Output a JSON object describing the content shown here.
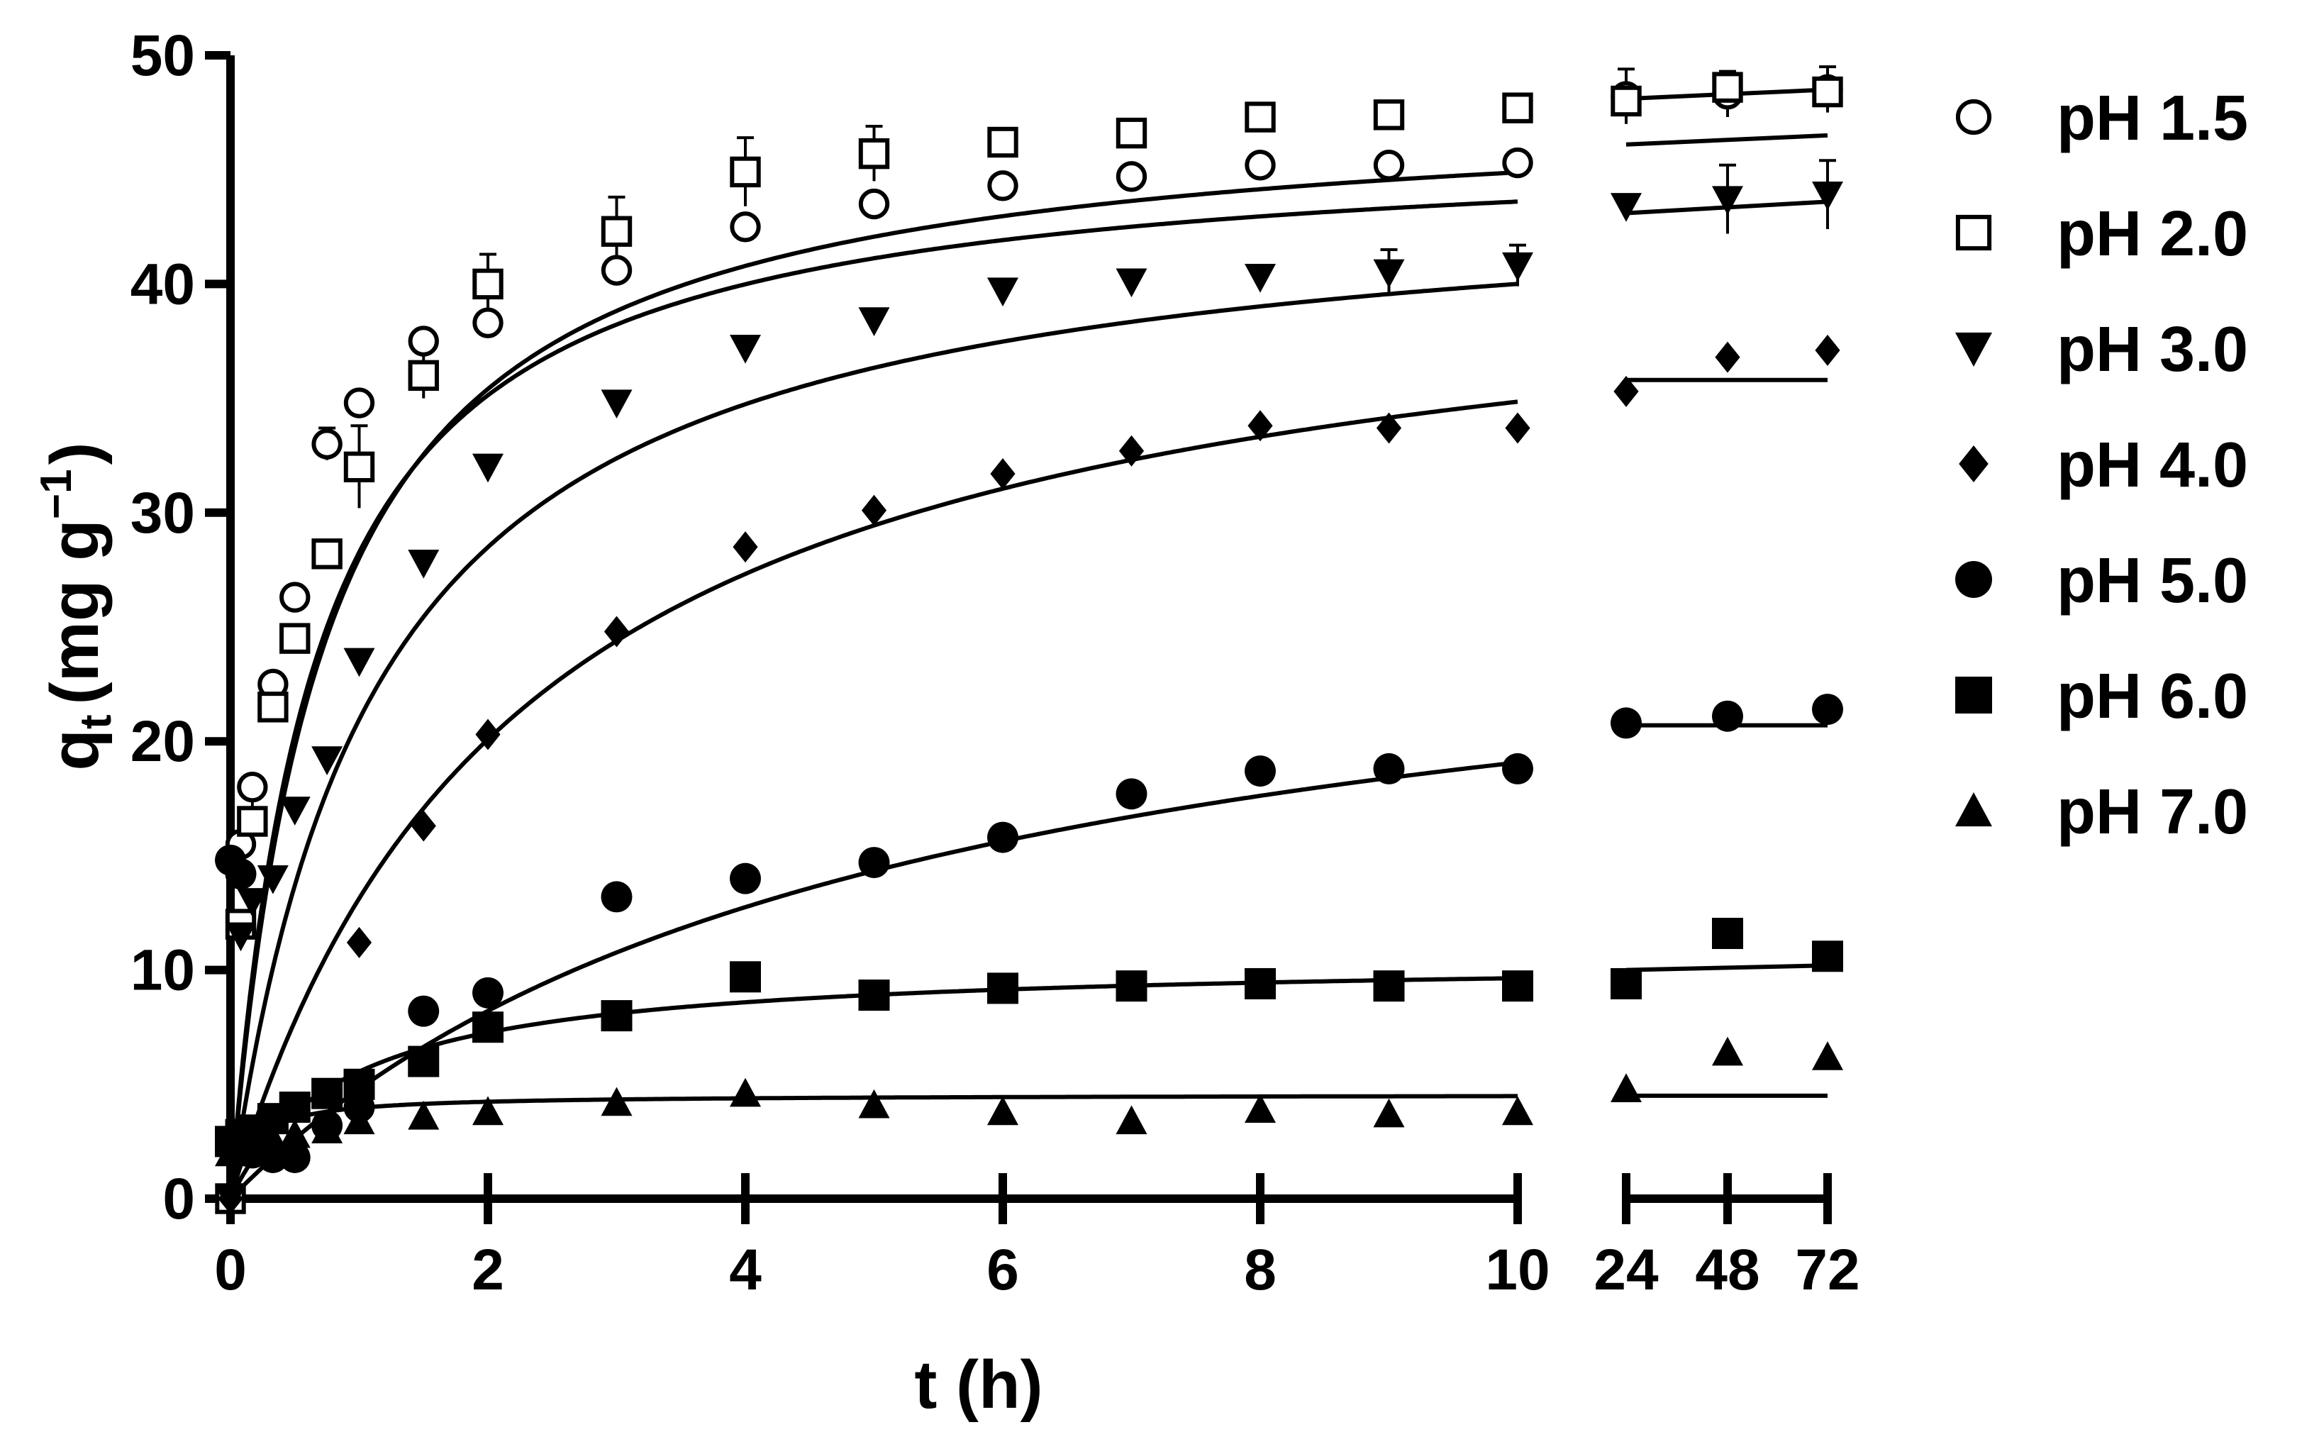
{
  "chart_data": {
    "type": "scatter",
    "xlabel": "t (h)",
    "ylabel": "q",
    "ylabel_sub": "t",
    "ylabel_unit": "(mg g",
    "ylabel_sup": "−1",
    "ylabel_close": ")",
    "ylim": [
      0,
      50
    ],
    "xlim_main": [
      0,
      10
    ],
    "x_ticks_main": [
      "0",
      "2",
      "4",
      "6",
      "8",
      "10"
    ],
    "x_ticks_break": [
      "24",
      "48",
      "72"
    ],
    "y_ticks": [
      "0",
      "10",
      "20",
      "30",
      "40",
      "50"
    ],
    "series": [
      {
        "name": "pH 1.5",
        "marker": "circle-open",
        "points": [
          [
            0,
            0
          ],
          [
            0.08,
            15.5
          ],
          [
            0.17,
            18
          ],
          [
            0.33,
            22.5
          ],
          [
            0.5,
            26.3
          ],
          [
            0.75,
            33
          ],
          [
            1,
            34.8
          ],
          [
            1.5,
            37.5
          ],
          [
            2,
            38.3
          ],
          [
            3,
            40.6
          ],
          [
            4,
            42.5
          ],
          [
            5,
            43.5
          ],
          [
            6,
            44.3
          ],
          [
            7,
            44.7
          ],
          [
            8,
            45.2
          ],
          [
            9,
            45.2
          ],
          [
            10,
            45.3
          ],
          [
            24,
            48.2
          ],
          [
            48,
            48.3
          ],
          [
            72,
            48.5
          ]
        ],
        "fit": {
          "model": "pso",
          "qe": 46.4,
          "k": 0.0336
        }
      },
      {
        "name": "pH 2.0",
        "marker": "square-open",
        "points": [
          [
            0,
            0
          ],
          [
            0.08,
            12
          ],
          [
            0.17,
            16.5
          ],
          [
            0.33,
            21.5
          ],
          [
            0.5,
            24.5
          ],
          [
            0.75,
            28.2
          ],
          [
            1,
            32
          ],
          [
            1.5,
            36
          ],
          [
            2,
            40
          ],
          [
            3,
            42.3
          ],
          [
            4,
            44.9
          ],
          [
            5,
            45.7
          ],
          [
            6,
            46.2
          ],
          [
            7,
            46.6
          ],
          [
            8,
            47.3
          ],
          [
            9,
            47.4
          ],
          [
            10,
            47.7
          ],
          [
            24,
            48
          ],
          [
            48,
            48.6
          ],
          [
            72,
            48.4
          ]
        ],
        "fit": {
          "model": "pso",
          "qe": 48.1,
          "k": 0.029
        }
      },
      {
        "name": "pH 3.0",
        "marker": "triangle-down",
        "points": [
          [
            0,
            0
          ],
          [
            0.08,
            11.5
          ],
          [
            0.17,
            13
          ],
          [
            0.33,
            14
          ],
          [
            0.5,
            17
          ],
          [
            0.75,
            19.2
          ],
          [
            1,
            23.5
          ],
          [
            1.5,
            27.8
          ],
          [
            2,
            32
          ],
          [
            3,
            34.8
          ],
          [
            4,
            37.2
          ],
          [
            5,
            38.4
          ],
          [
            6,
            39.7
          ],
          [
            7,
            40.1
          ],
          [
            8,
            40.3
          ],
          [
            9,
            40.5
          ],
          [
            10,
            40.8
          ],
          [
            24,
            43.4
          ],
          [
            48,
            43.7
          ],
          [
            72,
            43.9
          ]
        ],
        "fit": {
          "model": "pso",
          "qe": 44.5,
          "k": 0.02
        }
      },
      {
        "name": "pH 4.0",
        "marker": "diamond",
        "points": [
          [
            0,
            0
          ],
          [
            1,
            11.2
          ],
          [
            1.5,
            16.3
          ],
          [
            2,
            20.3
          ],
          [
            3,
            24.8
          ],
          [
            4,
            28.5
          ],
          [
            5,
            30.1
          ],
          [
            6,
            31.7
          ],
          [
            7,
            32.7
          ],
          [
            8,
            33.8
          ],
          [
            9,
            33.7
          ],
          [
            10,
            33.7
          ],
          [
            24,
            35.3
          ],
          [
            48,
            36.8
          ],
          [
            72,
            37.1
          ]
        ],
        "fit": {
          "model": "pso",
          "qe": 42.7,
          "k": 0.0104
        }
      },
      {
        "name": "pH 5.0",
        "marker": "circle-filled",
        "points": [
          [
            0,
            14.8
          ],
          [
            0.08,
            14.2
          ],
          [
            0.17,
            2
          ],
          [
            0.33,
            1.8
          ],
          [
            0.5,
            1.8
          ],
          [
            0.75,
            3.2
          ],
          [
            1,
            4
          ],
          [
            1.5,
            8.2
          ],
          [
            2,
            9
          ],
          [
            3,
            13.2
          ],
          [
            4,
            14
          ],
          [
            5,
            14.7
          ],
          [
            6,
            15.8
          ],
          [
            7,
            17.7
          ],
          [
            8,
            18.7
          ],
          [
            9,
            18.8
          ],
          [
            10,
            18.8
          ],
          [
            24,
            20.8
          ],
          [
            48,
            21.1
          ],
          [
            72,
            21.4
          ]
        ],
        "fit": {
          "model": "pso",
          "qe": 28.5,
          "k": 0.0071
        }
      },
      {
        "name": "pH 6.0",
        "marker": "square-filled",
        "points": [
          [
            0,
            2.5
          ],
          [
            0.08,
            2.8
          ],
          [
            0.17,
            3
          ],
          [
            0.33,
            3.5
          ],
          [
            0.5,
            4
          ],
          [
            0.75,
            4.6
          ],
          [
            1,
            5
          ],
          [
            1.5,
            6
          ],
          [
            2,
            7.5
          ],
          [
            3,
            8
          ],
          [
            4,
            9.7
          ],
          [
            5,
            8.9
          ],
          [
            6,
            9.2
          ],
          [
            7,
            9.3
          ],
          [
            8,
            9.4
          ],
          [
            9,
            9.3
          ],
          [
            10,
            9.3
          ],
          [
            24,
            9.4
          ],
          [
            48,
            11.6
          ],
          [
            72,
            10.6
          ]
        ],
        "fit": {
          "model": "pso",
          "qe": 10.5,
          "k": 0.107
        }
      },
      {
        "name": "pH 7.0",
        "marker": "triangle-up",
        "points": [
          [
            0,
            2
          ],
          [
            0.08,
            2.2
          ],
          [
            0.17,
            2.4
          ],
          [
            0.33,
            2.6
          ],
          [
            0.5,
            2.8
          ],
          [
            0.75,
            3
          ],
          [
            1,
            3.4
          ],
          [
            1.5,
            3.6
          ],
          [
            2,
            3.8
          ],
          [
            3,
            4.2
          ],
          [
            4,
            4.6
          ],
          [
            5,
            4.1
          ],
          [
            6,
            3.8
          ],
          [
            7,
            3.4
          ],
          [
            8,
            3.9
          ],
          [
            9,
            3.7
          ],
          [
            10,
            3.8
          ],
          [
            24,
            4.8
          ],
          [
            48,
            6.4
          ],
          [
            72,
            6.2
          ]
        ],
        "fit": {
          "model": "pso",
          "qe": 4.55,
          "k": 1.5
        }
      }
    ],
    "break_fits": [
      {
        "series": "pH 1.5",
        "y": [
          46.1,
          46.5
        ]
      },
      {
        "series": "pH 2.0",
        "y": [
          48.1,
          48.5
        ]
      },
      {
        "series": "pH 3.0",
        "y": [
          43.1,
          43.6
        ]
      },
      {
        "series": "pH 4.0",
        "y": [
          35.8,
          35.8
        ]
      },
      {
        "series": "pH 5.0",
        "y": [
          20.7,
          20.7
        ]
      },
      {
        "series": "pH 6.0",
        "y": [
          10.0,
          10.2
        ]
      },
      {
        "series": "pH 7.0",
        "y": [
          4.5,
          4.5
        ]
      }
    ],
    "error_bars": [
      {
        "x": 0.17,
        "y": 16.5,
        "err": 1
      },
      {
        "x": 0.75,
        "y": 33,
        "err": 0.7
      },
      {
        "x": 1,
        "y": 32,
        "err": 1.8
      },
      {
        "x": 1.5,
        "y": 36,
        "err": 1
      },
      {
        "x": 2,
        "y": 40,
        "err": 1.3
      },
      {
        "x": 3,
        "y": 42.3,
        "err": 1.5
      },
      {
        "x": 4,
        "y": 44.9,
        "err": 1.5
      },
      {
        "x": 5,
        "y": 45.7,
        "err": 1.2
      },
      {
        "x": 6,
        "y": 46.2,
        "err": 0.6
      },
      {
        "x": 9,
        "y": 40.5,
        "err": 1
      },
      {
        "x": 10,
        "y": 40.8,
        "err": 0.9
      },
      {
        "x": 24,
        "y": 48.2,
        "err": 1.2
      },
      {
        "x": 48,
        "y": 48.3,
        "err": 1
      },
      {
        "x": 72,
        "y": 48.5,
        "err": 1
      },
      {
        "x": 48,
        "y": 43.7,
        "err": 1.5
      },
      {
        "x": 72,
        "y": 43.9,
        "err": 1.5
      }
    ],
    "legend": [
      "pH 1.5",
      "pH 2.0",
      "pH 3.0",
      "pH 4.0",
      "pH 5.0",
      "pH 6.0",
      "pH 7.0"
    ],
    "legend_position": "right",
    "grid": false
  }
}
